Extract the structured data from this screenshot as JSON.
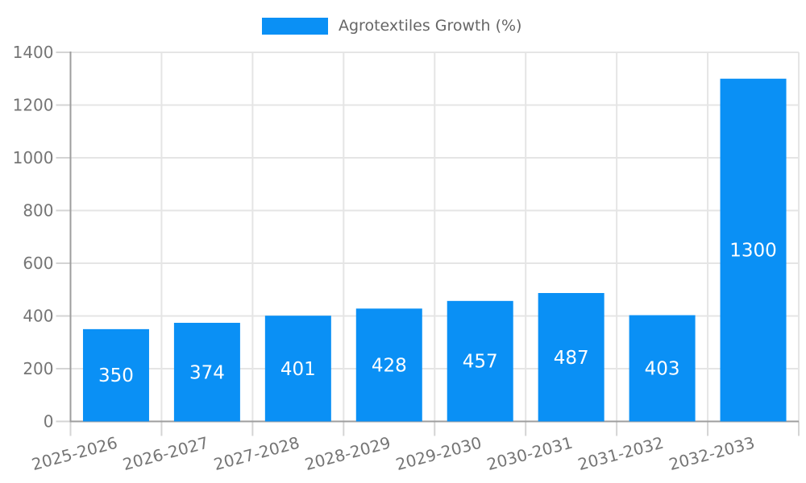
{
  "chart_data": {
    "type": "bar",
    "title": "",
    "legend": {
      "label": "Agrotextiles Growth (%)",
      "position": "top"
    },
    "categories": [
      "2025-2026",
      "2026-2027",
      "2027-2028",
      "2028-2029",
      "2029-2030",
      "2030-2031",
      "2031-2032",
      "2032-2033"
    ],
    "series": [
      {
        "name": "Agrotextiles Growth (%)",
        "values": [
          350,
          374,
          401,
          428,
          457,
          487,
          403,
          1300
        ]
      }
    ],
    "value_labels_shown": true,
    "xlabel": "",
    "ylabel": "",
    "ylim": [
      0,
      1400
    ],
    "yticks": [
      0,
      200,
      400,
      600,
      800,
      1000,
      1200,
      1400
    ],
    "grid": true,
    "x_tick_rotation_deg": 15,
    "colors": {
      "bar": "#0a90f5",
      "bar_value_label": "#ffffff",
      "axis": "#9e9e9e",
      "gridline": "#e5e5e5",
      "tick_mark": "#d4d4d4",
      "tick_label": "#757575",
      "legend_text": "#666666",
      "background": "#ffffff"
    }
  }
}
